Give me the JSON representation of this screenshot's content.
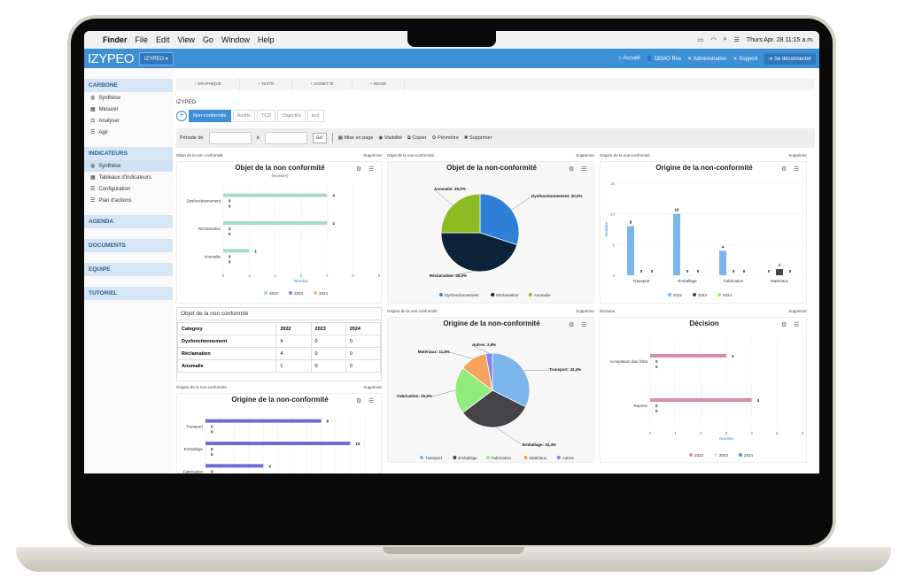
{
  "os_menu": {
    "app": "Finder",
    "items": [
      "File",
      "Edit",
      "View",
      "Go",
      "Window",
      "Help"
    ],
    "clock": "Thurs Apr. 28 11:15 a.m."
  },
  "app": {
    "logo": "IZYPEO",
    "org_button": "IZYPEO ▾",
    "nav": [
      "Accueil",
      "DEMO Rse",
      "Administration",
      "Support"
    ],
    "logout": "Se déconnecter"
  },
  "sidebar": {
    "sections": [
      {
        "title": "CARBONE",
        "items": [
          "Synthèse",
          "Mesurer",
          "Analyser",
          "Agir"
        ]
      },
      {
        "title": "INDICATEURS",
        "items": [
          "Synthèse",
          "Tableaux d'indicateurs",
          "Configuration",
          "Plan d'actions"
        ]
      },
      {
        "title": "AGENDA"
      },
      {
        "title": "DOCUMENTS"
      },
      {
        "title": "EQUIPE"
      },
      {
        "title": "TUTORIEL"
      }
    ]
  },
  "addbar": [
    "+ GRAPHIQUE",
    "+ TEXTE",
    "+ VIGNETTE",
    "+ IMAGE"
  ],
  "breadcrumb": "IZYPEO",
  "tabs": [
    "Non-conformité",
    "Audits",
    "TCD",
    "Objectifs",
    "test"
  ],
  "toolbar": {
    "period_label": "Période de",
    "to_label": "à",
    "go": "Go!",
    "actions": [
      "Mise en page",
      "Visibilité",
      "Copier",
      "Périmètre",
      "Supprimer"
    ]
  },
  "cards": {
    "c1": {
      "header": "Objet de la non conformité",
      "delete": "Supprimer",
      "title": "Objet de la non conformité",
      "subtitle": "(Nombre)",
      "xlabel": "Nombre"
    },
    "c2": {
      "header": "Objet de la non-conformité",
      "delete": "Supprimer",
      "title": "Objet de la non-conformité"
    },
    "c3": {
      "header": "Origine de la non-conformité",
      "delete": "Supprimer",
      "title": "Origine de la non-conformité",
      "ylabel": "Nombre"
    },
    "c4": {
      "title": "Objet de la non conformité",
      "table": [
        [
          "Category",
          "2022",
          "2023",
          "2024"
        ],
        [
          "Dysfonctionnement",
          "4",
          "0",
          "0"
        ],
        [
          "Réclamation",
          "4",
          "0",
          "0"
        ],
        [
          "Anomalie",
          "1",
          "0",
          "0"
        ]
      ]
    },
    "c5": {
      "header": "Origine de la non-conformité",
      "delete": "Supprimer",
      "title": "Origine de la non-conformité"
    },
    "c6": {
      "header": "Origine de la non-conformité",
      "delete": "Supprimer",
      "title": "Origine de la non-conformité"
    },
    "c7": {
      "header": "Décision",
      "delete": "Supprimer",
      "title": "Décision",
      "xlabel": "Nombre"
    }
  },
  "chart_data": [
    {
      "type": "bar",
      "orientation": "horizontal",
      "title": "Objet de la non conformité",
      "subtitle": "(Nombre)",
      "xlabel": "Nombre",
      "categories": [
        "Dysfonctionnement",
        "Réclamation",
        "Anomalie"
      ],
      "series": [
        {
          "name": "2022",
          "values": [
            4,
            4,
            1
          ],
          "color": "#a8dcc4"
        },
        {
          "name": "2023",
          "values": [
            0,
            0,
            0
          ],
          "color": "#7b86c9"
        },
        {
          "name": "2024",
          "values": [
            0,
            0,
            0
          ],
          "color": "#f0b37c"
        }
      ],
      "xlim": [
        0,
        6
      ]
    },
    {
      "type": "pie",
      "title": "Objet de la non-conformité",
      "slices": [
        {
          "name": "Dysfonctionnement",
          "value": 30.0,
          "color": "#2f7ed8"
        },
        {
          "name": "Réclamation",
          "value": 45.0,
          "color": "#0d233a"
        },
        {
          "name": "Anomalie",
          "value": 25.0,
          "color": "#8bbc21"
        }
      ]
    },
    {
      "type": "bar",
      "title": "Origine de la non-conformité",
      "ylabel": "Nombre",
      "categories": [
        "Transport",
        "Emballage",
        "Fabrication",
        "Matériaux"
      ],
      "series": [
        {
          "name": "2022",
          "values": [
            8,
            10,
            4,
            0
          ],
          "color": "#7cb5ec"
        },
        {
          "name": "2023",
          "values": [
            0,
            0,
            0,
            1
          ],
          "color": "#434348"
        },
        {
          "name": "2024",
          "values": [
            0,
            0,
            0,
            0
          ],
          "color": "#90ed7d"
        }
      ],
      "ylim": [
        0,
        15
      ]
    },
    {
      "type": "bar",
      "orientation": "horizontal",
      "title": "Origine de la non-conformité",
      "categories": [
        "Transport",
        "Emballage",
        "Fabrication"
      ],
      "series": [
        {
          "name": "2022",
          "values": [
            8,
            10,
            4
          ],
          "color": "#6b6fd4"
        },
        {
          "name": "2023",
          "values": [
            0,
            0,
            0
          ]
        },
        {
          "name": "2024",
          "values": [
            0,
            0,
            0
          ]
        }
      ]
    },
    {
      "type": "pie",
      "title": "Origine de la non-conformité",
      "slices": [
        {
          "name": "Transport",
          "value": 32.4,
          "color": "#7cb5ec"
        },
        {
          "name": "Emballage",
          "value": 32.4,
          "color": "#434348"
        },
        {
          "name": "Fabrication",
          "value": 20.6,
          "color": "#90ed7d"
        },
        {
          "name": "Matériaux",
          "value": 11.8,
          "color": "#f7a35c"
        },
        {
          "name": "Autres",
          "value": 2.9,
          "color": "#8085e9"
        }
      ]
    },
    {
      "type": "bar",
      "orientation": "horizontal",
      "title": "Décision",
      "xlabel": "Nombre",
      "categories": [
        "Acceptation dan l'état",
        "Reprise"
      ],
      "series": [
        {
          "name": "2022",
          "values": [
            3,
            4
          ],
          "color": "#d98bb2"
        },
        {
          "name": "2023",
          "values": [
            0,
            0
          ],
          "color": "#e6e6e6"
        },
        {
          "name": "2024",
          "values": [
            0,
            0
          ],
          "color": "#5a8fd6"
        }
      ],
      "xlim": [
        0,
        6
      ]
    }
  ]
}
